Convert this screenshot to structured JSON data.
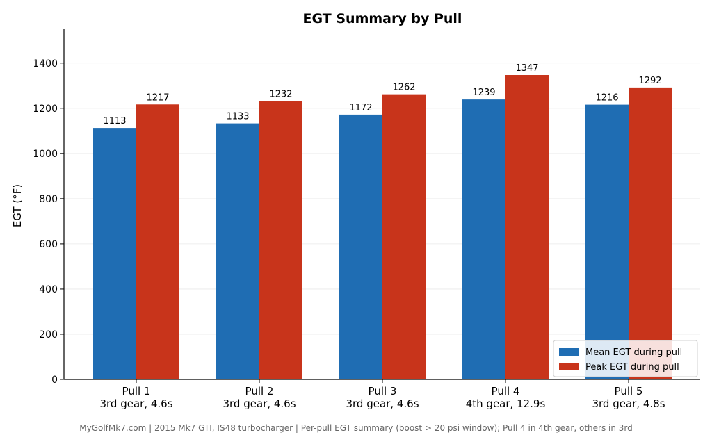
{
  "chart_data": {
    "type": "bar",
    "title": "EGT Summary by Pull",
    "ylabel": "EGT (°F)",
    "xlabel": "",
    "ylim": [
      0,
      1550
    ],
    "yticks": [
      0,
      200,
      400,
      600,
      800,
      1000,
      1200,
      1400
    ],
    "grid": true,
    "legend_position": "bottom-right",
    "categories": [
      [
        "Pull 1",
        "3rd gear, 4.6s"
      ],
      [
        "Pull 2",
        "3rd gear, 4.6s"
      ],
      [
        "Pull 3",
        "3rd gear, 4.6s"
      ],
      [
        "Pull 4",
        "4th gear, 12.9s"
      ],
      [
        "Pull 5",
        "3rd gear, 4.8s"
      ]
    ],
    "series": [
      {
        "name": "Mean EGT during pull",
        "color": "#1f6db3",
        "values": [
          1113,
          1133,
          1172,
          1239,
          1216
        ]
      },
      {
        "name": "Peak EGT during pull",
        "color": "#c8341b",
        "values": [
          1217,
          1232,
          1262,
          1347,
          1292
        ]
      }
    ],
    "footnote": "MyGolfMk7.com | 2015 Mk7 GTI, IS48 turbocharger | Per-pull EGT summary (boost > 20 psi window); Pull 4 in 4th gear, others in 3rd"
  }
}
